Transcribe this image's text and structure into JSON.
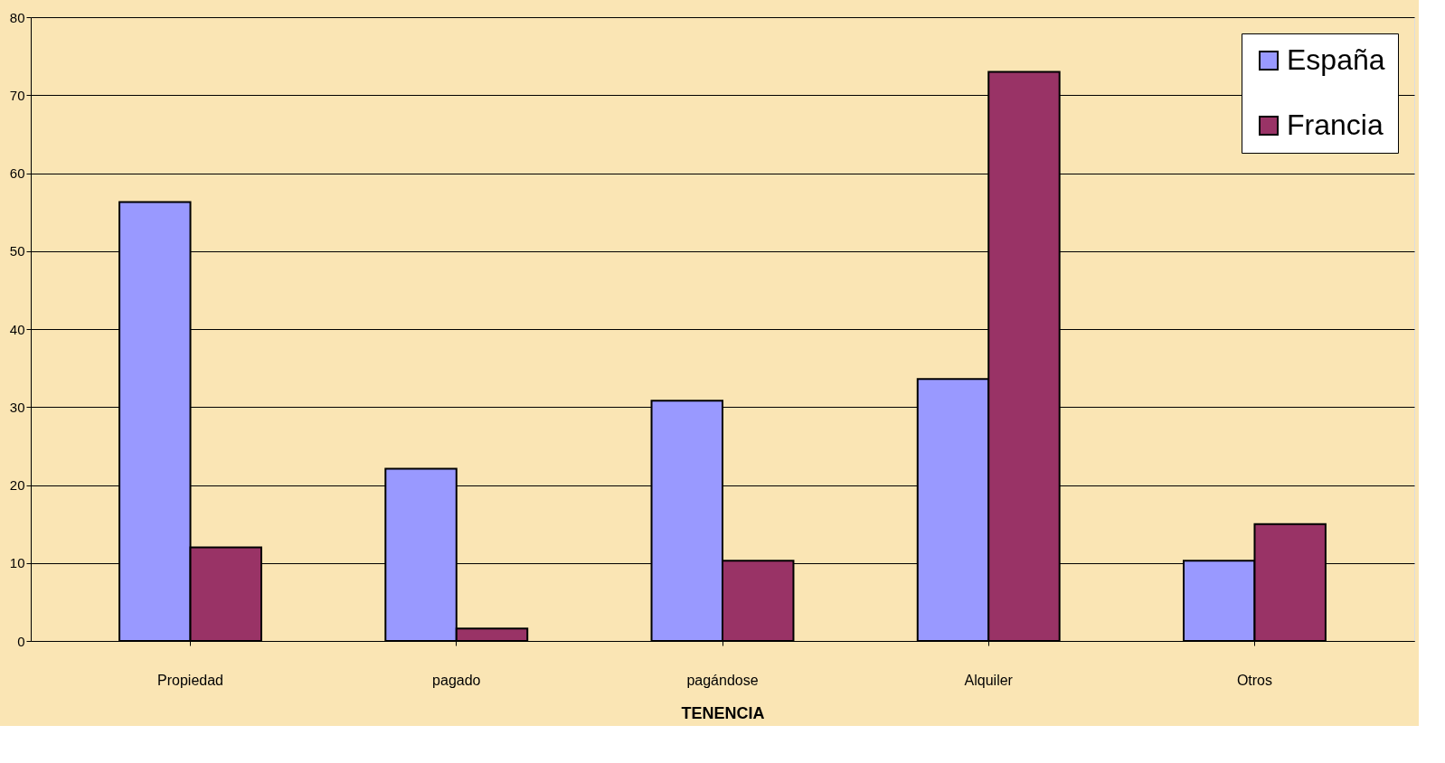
{
  "chart_data": {
    "type": "bar",
    "xlabel": "TENENCIA",
    "categories": [
      "Propiedad",
      "pagado",
      "pagándose",
      "Alquiler",
      "Otros"
    ],
    "series": [
      {
        "name": "España",
        "color": "#9999ff",
        "values": [
          56.3,
          22.1,
          30.8,
          33.6,
          10.3
        ]
      },
      {
        "name": "Francia",
        "color": "#993366",
        "values": [
          12.0,
          1.6,
          10.3,
          73.0,
          15.0
        ]
      }
    ],
    "ylim": [
      0,
      80
    ],
    "yticks": [
      0,
      10,
      20,
      30,
      40,
      50,
      60,
      70,
      80
    ],
    "grid": "y",
    "legend": "top right"
  }
}
